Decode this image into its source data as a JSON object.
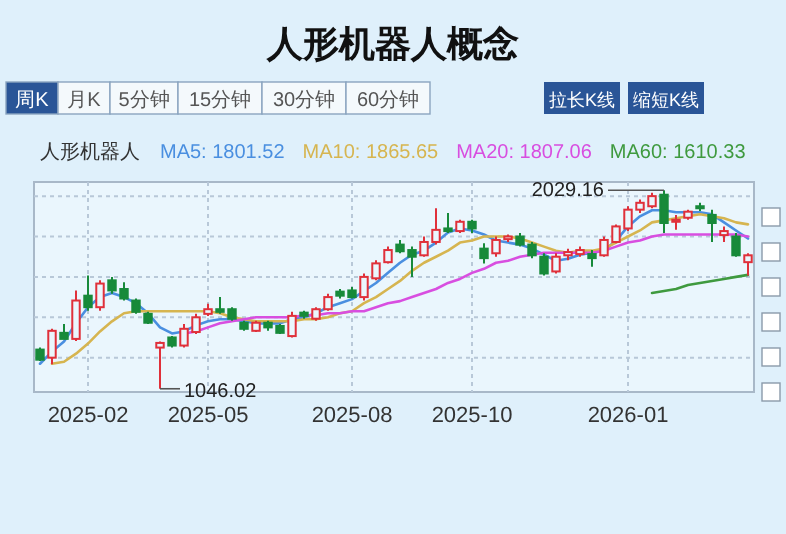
{
  "chart_data": {
    "type": "candlestick",
    "title": "人形机器人概念",
    "legend_title": "人形机器人",
    "legend": "top",
    "grid": true,
    "tick_labels": "x",
    "categories": [
      null,
      null,
      null,
      null,
      "2025-02",
      null,
      null,
      null,
      null,
      null,
      null,
      null,
      null,
      null,
      "2025-05",
      null,
      null,
      null,
      null,
      null,
      null,
      null,
      null,
      null,
      null,
      null,
      "2025-08",
      null,
      null,
      null,
      null,
      null,
      null,
      null,
      null,
      null,
      "2025-10",
      null,
      null,
      null,
      null,
      null,
      null,
      null,
      null,
      null,
      null,
      null,
      null,
      "2026-01",
      null,
      null,
      null,
      null,
      null,
      null,
      null,
      null,
      null,
      null
    ],
    "ylim": [
      1030,
      2070
    ],
    "yticks": [
      {
        "value": 1200,
        "label": null
      },
      {
        "value": 1400,
        "label": null
      },
      {
        "value": 1600,
        "label": null
      },
      {
        "value": 1800,
        "label": null
      },
      {
        "value": 2000,
        "label": null
      }
    ],
    "ohlc": [
      [
        1240,
        1250,
        1183,
        1190
      ],
      [
        1200,
        1343,
        1167,
        1333
      ],
      [
        1323,
        1367,
        1293,
        1293
      ],
      [
        1293,
        1533,
        1283,
        1483
      ],
      [
        1507,
        1607,
        1433,
        1450
      ],
      [
        1450,
        1583,
        1433,
        1567
      ],
      [
        1583,
        1600,
        1517,
        1533
      ],
      [
        1540,
        1573,
        1483,
        1493
      ],
      [
        1483,
        1493,
        1417,
        1427
      ],
      [
        1417,
        1427,
        1367,
        1373
      ],
      [
        1250,
        1280,
        1046.02,
        1273
      ],
      [
        1300,
        1307,
        1250,
        1260
      ],
      [
        1260,
        1367,
        1250,
        1343
      ],
      [
        1327,
        1417,
        1317,
        1400
      ],
      [
        1417,
        1467,
        1407,
        1440
      ],
      [
        1440,
        1500,
        1417,
        1427
      ],
      [
        1440,
        1450,
        1383,
        1393
      ],
      [
        1373,
        1383,
        1333,
        1343
      ],
      [
        1333,
        1383,
        1327,
        1373
      ],
      [
        1373,
        1383,
        1333,
        1350
      ],
      [
        1357,
        1367,
        1317,
        1323
      ],
      [
        1307,
        1427,
        1300,
        1407
      ],
      [
        1423,
        1433,
        1393,
        1407
      ],
      [
        1393,
        1450,
        1383,
        1440
      ],
      [
        1440,
        1517,
        1433,
        1500
      ],
      [
        1527,
        1540,
        1493,
        1507
      ],
      [
        1533,
        1550,
        1493,
        1500
      ],
      [
        1500,
        1617,
        1483,
        1600
      ],
      [
        1593,
        1683,
        1583,
        1667
      ],
      [
        1673,
        1750,
        1667,
        1733
      ],
      [
        1760,
        1783,
        1717,
        1727
      ],
      [
        1733,
        1750,
        1600,
        1700
      ],
      [
        1707,
        1800,
        1700,
        1773
      ],
      [
        1773,
        1940,
        1760,
        1833
      ],
      [
        1840,
        1917,
        1817,
        1827
      ],
      [
        1827,
        1883,
        1817,
        1873
      ],
      [
        1873,
        1883,
        1817,
        1840
      ],
      [
        1740,
        1767,
        1667,
        1693
      ],
      [
        1717,
        1800,
        1700,
        1783
      ],
      [
        1787,
        1810,
        1773,
        1800
      ],
      [
        1800,
        1817,
        1750,
        1760
      ],
      [
        1760,
        1773,
        1693,
        1707
      ],
      [
        1700,
        1717,
        1607,
        1617
      ],
      [
        1627,
        1717,
        1617,
        1700
      ],
      [
        1707,
        1740,
        1683,
        1723
      ],
      [
        1713,
        1750,
        1700,
        1733
      ],
      [
        1713,
        1733,
        1650,
        1693
      ],
      [
        1707,
        1800,
        1700,
        1783
      ],
      [
        1773,
        1860,
        1767,
        1850
      ],
      [
        1840,
        1950,
        1827,
        1933
      ],
      [
        1933,
        1983,
        1917,
        1967
      ],
      [
        1950,
        2017,
        1940,
        2000
      ],
      [
        2007,
        2029.16,
        1817,
        1867
      ],
      [
        1873,
        1907,
        1833,
        1883
      ],
      [
        1893,
        1933,
        1883,
        1923
      ],
      [
        1950,
        1967,
        1927,
        1940
      ],
      [
        1907,
        1933,
        1773,
        1867
      ],
      [
        1807,
        1850,
        1773,
        1827
      ],
      [
        1800,
        1817,
        1700,
        1707
      ],
      [
        1673,
        1717,
        1607,
        1707
      ]
    ],
    "series": [
      {
        "name": "MA5: 1801.52",
        "type": "line",
        "color": "#4a8fe0",
        "values": [
          1170,
          1230,
          1280,
          1370,
          1450,
          1500,
          1520,
          1500,
          1470,
          1420,
          1350,
          1320,
          1330,
          1360,
          1380,
          1390,
          1390,
          1380,
          1370,
          1370,
          1370,
          1390,
          1400,
          1420,
          1450,
          1470,
          1490,
          1530,
          1570,
          1620,
          1670,
          1710,
          1730,
          1770,
          1820,
          1840,
          1830,
          1810,
          1780,
          1770,
          1760,
          1740,
          1710,
          1680,
          1690,
          1710,
          1720,
          1730,
          1780,
          1850,
          1900,
          1930,
          1930,
          1920,
          1920,
          1920,
          1910,
          1870,
          1830,
          1790
        ]
      },
      {
        "name": "MA10: 1865.65",
        "type": "line",
        "color": "#d6b550",
        "values": [
          null,
          1170,
          1180,
          1220,
          1270,
          1330,
          1380,
          1420,
          1430,
          1430,
          1430,
          1430,
          1430,
          1430,
          1430,
          1420,
          1400,
          1390,
          1380,
          1380,
          1380,
          1380,
          1390,
          1390,
          1400,
          1420,
          1430,
          1470,
          1500,
          1540,
          1580,
          1630,
          1670,
          1700,
          1730,
          1770,
          1780,
          1800,
          1800,
          1800,
          1790,
          1770,
          1750,
          1730,
          1720,
          1730,
          1730,
          1740,
          1770,
          1800,
          1830,
          1870,
          1880,
          1890,
          1900,
          1910,
          1900,
          1890,
          1870,
          1860
        ]
      },
      {
        "name": "MA20: 1807.06",
        "type": "line",
        "color": "#d84ee0",
        "values": [
          null,
          null,
          null,
          null,
          null,
          null,
          null,
          null,
          null,
          null,
          null,
          null,
          1320,
          1330,
          1350,
          1370,
          1380,
          1390,
          1400,
          1400,
          1400,
          1400,
          1410,
          1410,
          1420,
          1420,
          1430,
          1430,
          1450,
          1470,
          1480,
          1500,
          1520,
          1540,
          1570,
          1590,
          1620,
          1640,
          1670,
          1680,
          1700,
          1710,
          1720,
          1720,
          1720,
          1720,
          1720,
          1730,
          1750,
          1770,
          1780,
          1800,
          1810,
          1810,
          1810,
          1810,
          1810,
          1810,
          1810,
          1800
        ]
      },
      {
        "name": "MA60: 1610.33",
        "type": "line",
        "color": "#3f9a3f",
        "values": [
          null,
          null,
          null,
          null,
          null,
          null,
          null,
          null,
          null,
          null,
          null,
          null,
          null,
          null,
          null,
          null,
          null,
          null,
          null,
          null,
          null,
          null,
          null,
          null,
          null,
          null,
          null,
          null,
          null,
          null,
          null,
          null,
          null,
          null,
          null,
          null,
          null,
          null,
          null,
          null,
          null,
          null,
          null,
          null,
          null,
          null,
          null,
          null,
          null,
          null,
          null,
          1520,
          1530,
          1540,
          1560,
          1570,
          1580,
          1590,
          1600,
          1610
        ]
      }
    ],
    "annotations": [
      "周K",
      "月K",
      "5分钟",
      "15分钟",
      "30分钟",
      "60分钟",
      "拉长K线",
      "缩短K线",
      "2029.16",
      "1046.02"
    ]
  }
}
